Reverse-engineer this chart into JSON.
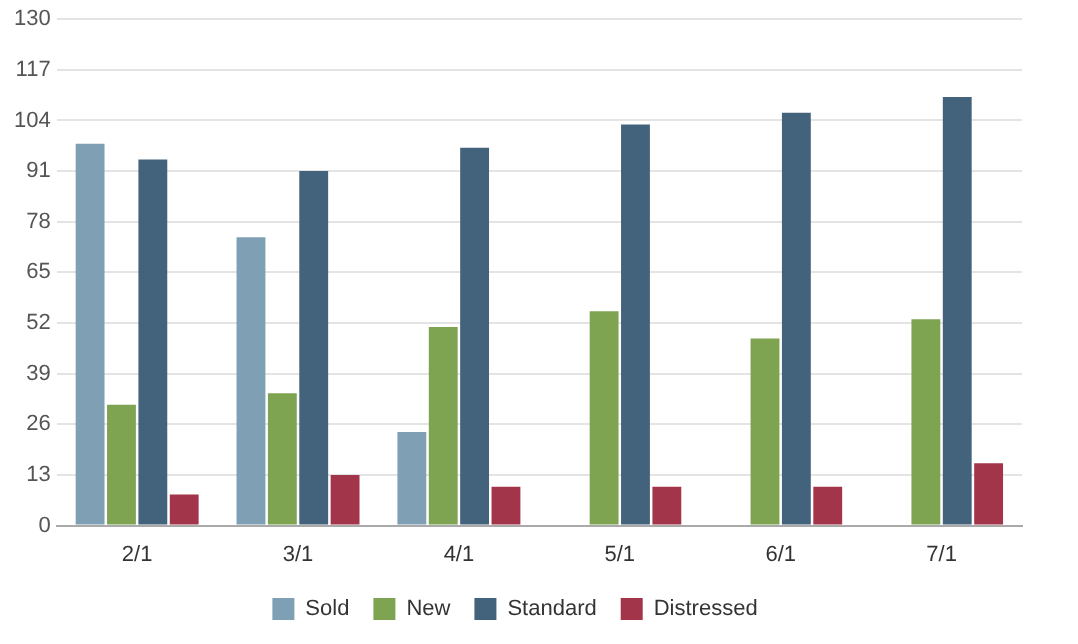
{
  "chart_data": {
    "type": "bar",
    "categories": [
      "2/1",
      "3/1",
      "4/1",
      "5/1",
      "6/1",
      "7/1"
    ],
    "series": [
      {
        "name": "Sold",
        "color": "#7f9fb5",
        "values": [
          98,
          74,
          24,
          null,
          null,
          null
        ]
      },
      {
        "name": "New",
        "color": "#7ea452",
        "values": [
          31,
          34,
          51,
          55,
          48,
          53
        ]
      },
      {
        "name": "Standard",
        "color": "#43627c",
        "values": [
          94,
          91,
          97,
          103,
          106,
          110
        ]
      },
      {
        "name": "Distressed",
        "color": "#a3354a",
        "values": [
          8,
          13,
          10,
          10,
          10,
          16
        ]
      }
    ],
    "ylim": [
      0,
      130
    ],
    "yticks": [
      0,
      13,
      26,
      39,
      52,
      65,
      78,
      91,
      104,
      117,
      130
    ],
    "grid": "y",
    "legend": "bottom"
  }
}
